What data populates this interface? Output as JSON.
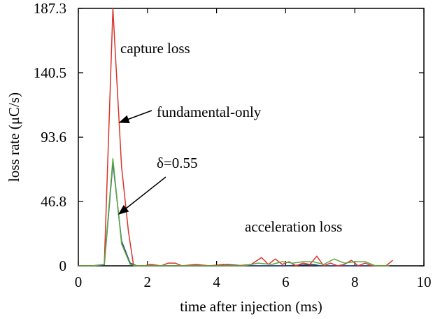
{
  "chart_data": {
    "type": "line",
    "xlabel": "time after injection (ms)",
    "ylabel": "loss rate (μC/s)",
    "xlim": [
      0,
      10
    ],
    "ylim": [
      0,
      187.3
    ],
    "x_ticks": [
      0,
      2,
      4,
      6,
      8,
      10
    ],
    "x_tick_labels": [
      "0",
      "2",
      "4",
      "6",
      "8",
      "10"
    ],
    "y_ticks": [
      0,
      46.8,
      93.6,
      140.5,
      187.3
    ],
    "y_tick_labels": [
      "0",
      "46.8",
      "93.6",
      "140.5",
      "187.3"
    ],
    "grid": false,
    "series": [
      {
        "color": "#2b3f8f",
        "points": [
          [
            0,
            0
          ],
          [
            0.4,
            0
          ],
          [
            0.75,
            0.5
          ],
          [
            1.0,
            75
          ],
          [
            1.25,
            18
          ],
          [
            1.5,
            2
          ],
          [
            1.7,
            0
          ],
          [
            2,
            0
          ],
          [
            4,
            0
          ],
          [
            4.3,
            1
          ],
          [
            4.8,
            0
          ],
          [
            5,
            0
          ],
          [
            6,
            0
          ],
          [
            6.8,
            1
          ],
          [
            7,
            0
          ],
          [
            7.6,
            0
          ],
          [
            8,
            0
          ],
          [
            8.5,
            0
          ]
        ]
      },
      {
        "color": "#d9342b",
        "points": [
          [
            0,
            0
          ],
          [
            0.4,
            0
          ],
          [
            0.75,
            1
          ],
          [
            1.0,
            187.3
          ],
          [
            1.25,
            72
          ],
          [
            1.45,
            25
          ],
          [
            1.6,
            0
          ],
          [
            1.9,
            0
          ],
          [
            2.1,
            1
          ],
          [
            2.4,
            0
          ],
          [
            2.6,
            2
          ],
          [
            2.8,
            2
          ],
          [
            3.0,
            0
          ],
          [
            3.4,
            1
          ],
          [
            3.8,
            0
          ],
          [
            4.2,
            1
          ],
          [
            4.6,
            0
          ],
          [
            5.0,
            1
          ],
          [
            5.3,
            6
          ],
          [
            5.5,
            1
          ],
          [
            5.7,
            5
          ],
          [
            5.9,
            1
          ],
          [
            6.1,
            3
          ],
          [
            6.3,
            0
          ],
          [
            6.5,
            2
          ],
          [
            6.7,
            1
          ],
          [
            6.9,
            7
          ],
          [
            7.1,
            0
          ],
          [
            7.3,
            2
          ],
          [
            7.5,
            0
          ],
          [
            7.7,
            1
          ],
          [
            7.9,
            4
          ],
          [
            8.1,
            0
          ],
          [
            8.3,
            2
          ],
          [
            8.5,
            0
          ],
          [
            8.9,
            0
          ],
          [
            9.1,
            4
          ]
        ]
      },
      {
        "color": "#5aaa3c",
        "points": [
          [
            0,
            0
          ],
          [
            0.4,
            0
          ],
          [
            0.75,
            1
          ],
          [
            1.0,
            78
          ],
          [
            1.25,
            16
          ],
          [
            1.5,
            1
          ],
          [
            1.7,
            0
          ],
          [
            2,
            0
          ],
          [
            3,
            0
          ],
          [
            4,
            0
          ],
          [
            4.8,
            0
          ],
          [
            5.2,
            2
          ],
          [
            5.6,
            1
          ],
          [
            5.9,
            3
          ],
          [
            6.2,
            2
          ],
          [
            6.5,
            3
          ],
          [
            6.8,
            3
          ],
          [
            7.1,
            1
          ],
          [
            7.4,
            5
          ],
          [
            7.7,
            2
          ],
          [
            8.0,
            3
          ],
          [
            8.3,
            3
          ],
          [
            8.6,
            0
          ],
          [
            9,
            0
          ]
        ]
      }
    ],
    "annotations": [
      {
        "text": "capture loss"
      },
      {
        "text": "fundamental-only"
      },
      {
        "text": "δ=0.55"
      },
      {
        "text": "acceleration loss"
      }
    ]
  }
}
